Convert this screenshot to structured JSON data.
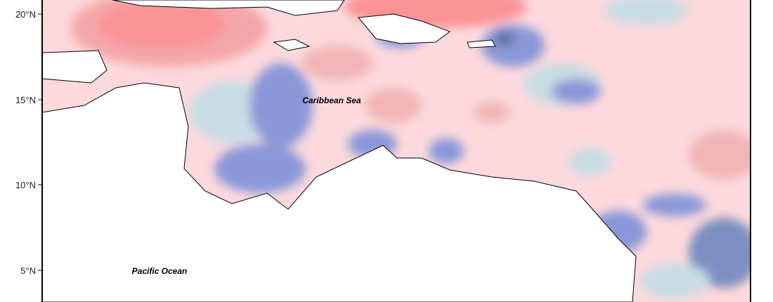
{
  "axis": {
    "y_labels": [
      "20°N",
      "15°N",
      "10°N",
      "5°N"
    ]
  },
  "labels": {
    "sea": "Caribbean Sea",
    "ocean": "Pacific Ocean"
  }
}
